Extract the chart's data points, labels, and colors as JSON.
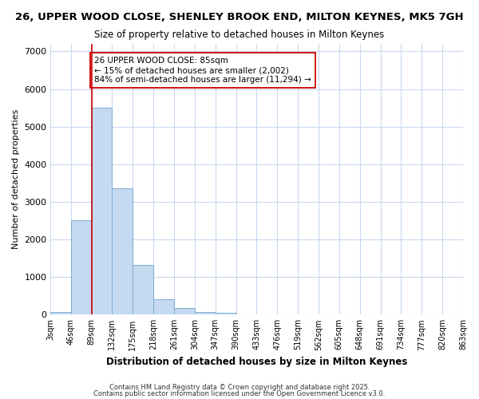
{
  "title": "26, UPPER WOOD CLOSE, SHENLEY BROOK END, MILTON KEYNES, MK5 7GH",
  "subtitle": "Size of property relative to detached houses in Milton Keynes",
  "xlabel": "Distribution of detached houses by size in Milton Keynes",
  "ylabel": "Number of detached properties",
  "bar_values": [
    75,
    2500,
    5500,
    3350,
    1320,
    420,
    185,
    75,
    50,
    0,
    0,
    0,
    0,
    0,
    0,
    0,
    0,
    0,
    0,
    0
  ],
  "bin_labels": [
    "3sqm",
    "46sqm",
    "89sqm",
    "132sqm",
    "175sqm",
    "218sqm",
    "261sqm",
    "304sqm",
    "347sqm",
    "390sqm",
    "433sqm",
    "476sqm",
    "519sqm",
    "562sqm",
    "605sqm",
    "648sqm",
    "691sqm",
    "734sqm",
    "777sqm",
    "820sqm",
    "863sqm"
  ],
  "bar_color": "#c5d9f0",
  "bar_edge_color": "#7bafd4",
  "vline_color": "#cc0000",
  "annotation_text": "26 UPPER WOOD CLOSE: 85sqm\n← 15% of detached houses are smaller (2,002)\n84% of semi-detached houses are larger (11,294) →",
  "annotation_box_color": "#ffffff",
  "annotation_box_edge": "#cc0000",
  "ylim": [
    0,
    7200
  ],
  "yticks": [
    0,
    1000,
    2000,
    3000,
    4000,
    5000,
    6000,
    7000
  ],
  "footer1": "Contains HM Land Registry data © Crown copyright and database right 2025.",
  "footer2": "Contains public sector information licensed under the Open Government Licence v3.0.",
  "background_color": "#ffffff",
  "grid_color": "#c8d8f0",
  "figsize": [
    6.0,
    5.0
  ],
  "dpi": 100
}
